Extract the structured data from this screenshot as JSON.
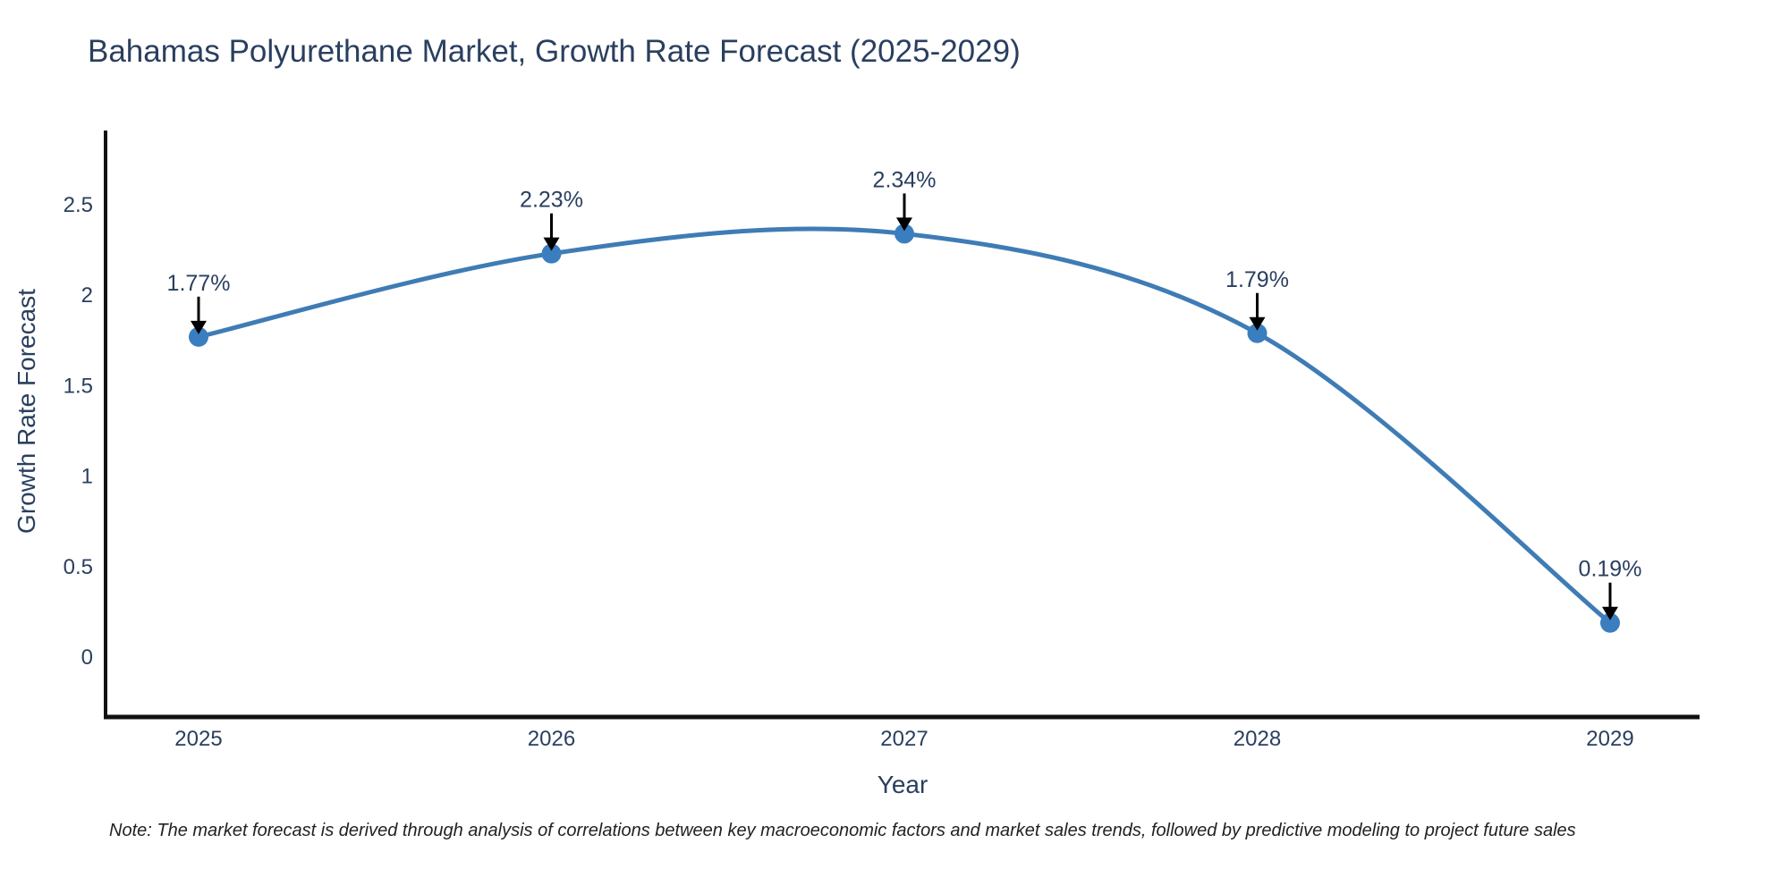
{
  "chart_data": {
    "type": "line",
    "title": "Bahamas Polyurethane Market, Growth Rate Forecast (2025-2029)",
    "xlabel": "Year",
    "ylabel": "Growth Rate Forecast",
    "categories": [
      "2025",
      "2026",
      "2027",
      "2028",
      "2029"
    ],
    "values": [
      1.77,
      2.23,
      2.34,
      1.79,
      0.19
    ],
    "point_labels": [
      "1.77%",
      "2.23%",
      "2.34%",
      "1.79%",
      "0.19%"
    ],
    "yticks": [
      0,
      0.5,
      1,
      1.5,
      2,
      2.5
    ],
    "ylim": [
      -0.33,
      2.91
    ],
    "line_shape": "spline",
    "grid": false,
    "legend": "none",
    "colors": {
      "line": "#3f7cb5",
      "marker": "#3a7ebf",
      "arrow": "#000000",
      "axis": "#111111",
      "text": "#2a3f5f"
    }
  },
  "note": {
    "text": "Note: The market forecast is derived through analysis of correlations between key macroeconomic factors and market sales trends, followed by predictive modeling to project future sales"
  }
}
